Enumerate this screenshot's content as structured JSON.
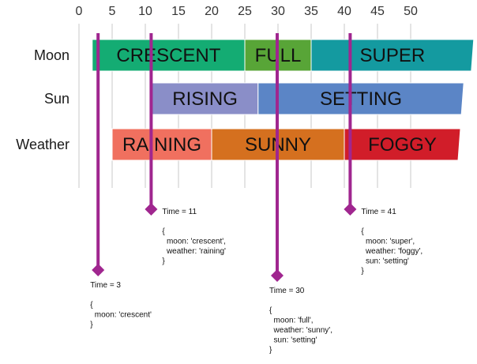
{
  "axis": {
    "ticks": [
      "0",
      "5",
      "10",
      "15",
      "20",
      "25",
      "30",
      "35",
      "40",
      "45",
      "50"
    ],
    "tick_values": [
      0,
      5,
      10,
      15,
      20,
      25,
      30,
      35,
      40,
      45,
      50
    ]
  },
  "rows": [
    {
      "id": "moon",
      "label": "Moon",
      "segments": [
        {
          "label": "CRESCENT",
          "start": 2,
          "end": 25,
          "color": "#14ac73"
        },
        {
          "label": "FULL",
          "start": 25,
          "end": 35,
          "color": "#58a537"
        },
        {
          "label": "SUPER",
          "start": 35,
          "end": 59.5,
          "color": "#149aa0"
        }
      ]
    },
    {
      "id": "sun",
      "label": "Sun",
      "segments": [
        {
          "label": "RISING",
          "start": 11,
          "end": 27,
          "color": "#8a8ec8"
        },
        {
          "label": "SETTING",
          "start": 27,
          "end": 58,
          "color": "#5b85c6"
        }
      ]
    },
    {
      "id": "weather",
      "label": "Weather",
      "segments": [
        {
          "label": "RAINING",
          "start": 5,
          "end": 20,
          "color": "#f0705f"
        },
        {
          "label": "SUNNY",
          "start": 20,
          "end": 40,
          "color": "#d5701f"
        },
        {
          "label": "FOGGY",
          "start": 40,
          "end": 57.5,
          "color": "#d11d29"
        }
      ]
    }
  ],
  "markers": [
    {
      "time": 3,
      "title": "Time = 3",
      "lines": [
        "{",
        "  moon: 'crescent'",
        "}"
      ]
    },
    {
      "time": 11,
      "title": "Time = 11",
      "lines": [
        "{",
        "  moon: 'crescent',",
        "  weather: 'raining'",
        "}"
      ]
    },
    {
      "time": 30,
      "title": "Time = 30",
      "lines": [
        "{",
        "  moon: 'full',",
        "  weather: 'sunny',",
        "  sun: 'setting'",
        "}"
      ]
    },
    {
      "time": 41,
      "title": "Time = 41",
      "lines": [
        "{",
        "  moon: 'super',",
        "  weather: 'foggy',",
        "  sun: 'setting'",
        "}"
      ]
    }
  ],
  "colors": {
    "marker": "#a0268f",
    "grid": "#c8c8c8"
  }
}
